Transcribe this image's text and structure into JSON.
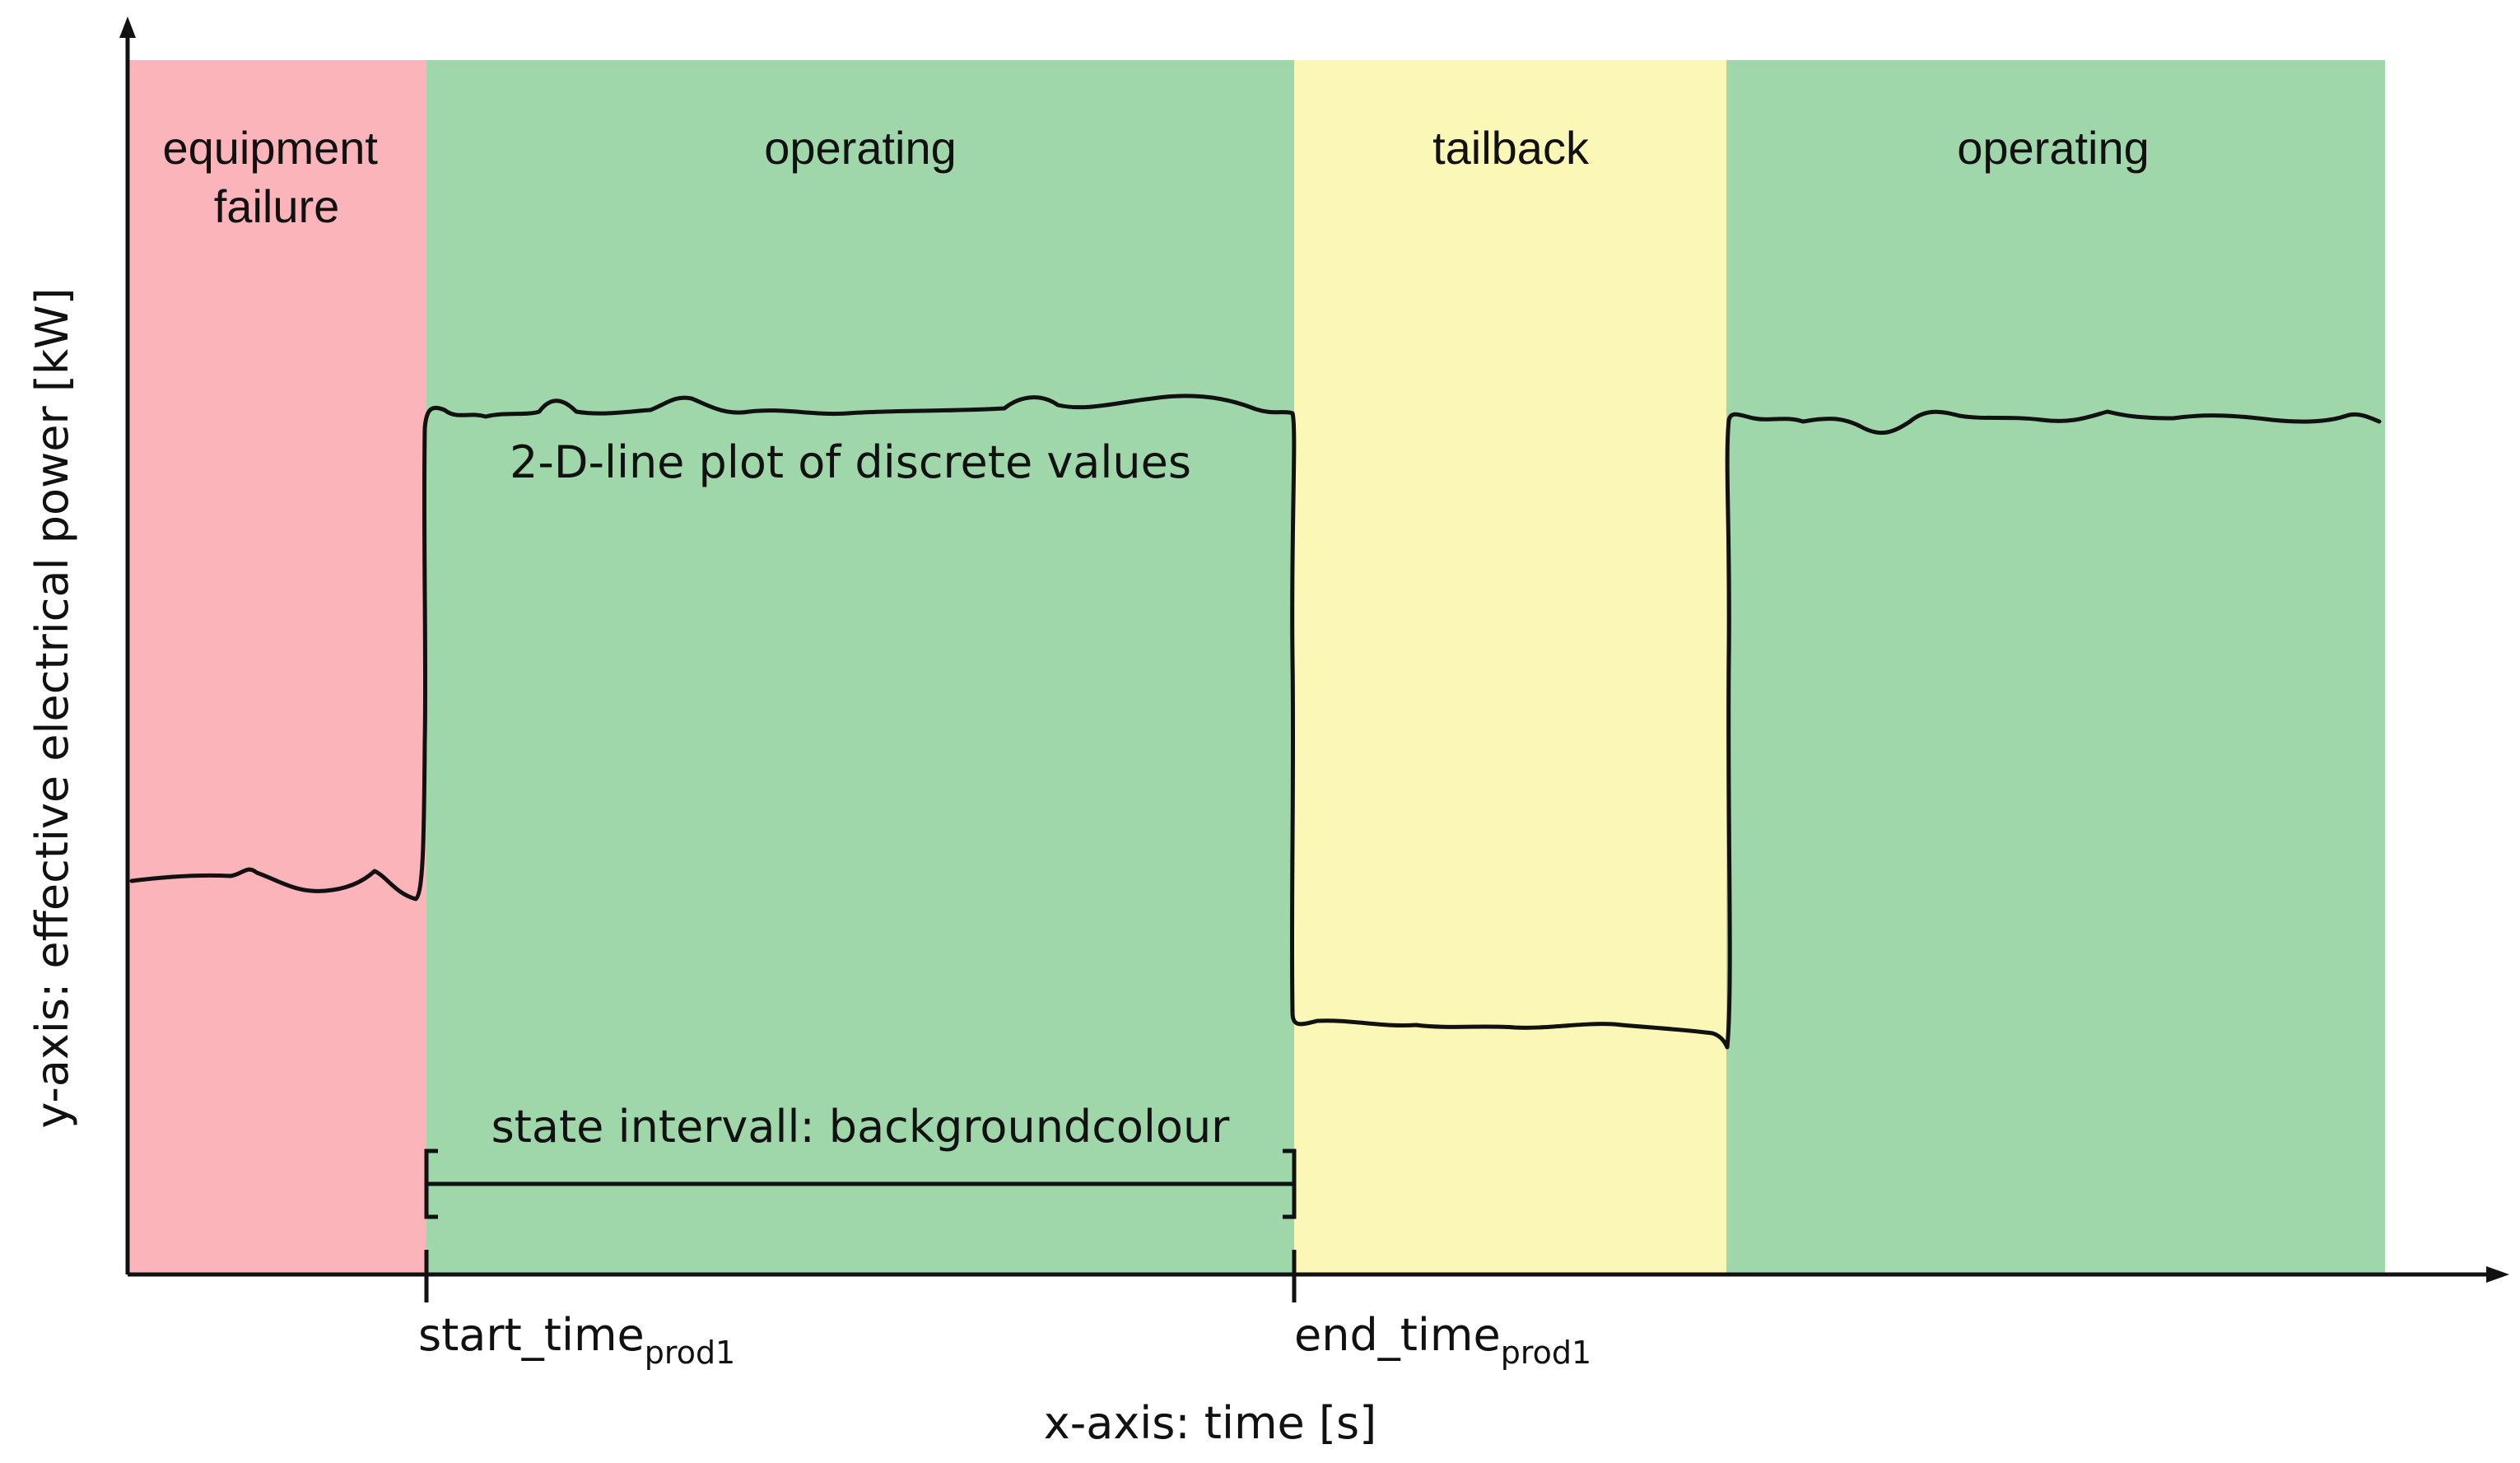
{
  "diagram": {
    "colors": {
      "equipment_failure": "#fbb5ba",
      "operating": "#9fd7ab",
      "tailback": "#fbf8b7",
      "line": "#111111"
    },
    "states": [
      {
        "label_lines": [
          "equipment",
          "failure"
        ],
        "color_key": "equipment_failure"
      },
      {
        "label_lines": [
          "operating"
        ],
        "color_key": "operating"
      },
      {
        "label_lines": [
          "tailback"
        ],
        "color_key": "tailback"
      },
      {
        "label_lines": [
          "operating"
        ],
        "color_key": "operating"
      }
    ],
    "line_plot_label": "2-D-line plot of discrete values",
    "interval_label": "state intervall: backgroundcolour",
    "start_marker": {
      "text": "start_time",
      "sub": "prod1"
    },
    "end_marker": {
      "text": "end_time",
      "sub": "prod1"
    },
    "x_axis_title": "x-axis: time [s]",
    "y_axis_title": "y-axis: effective electrical power [kW]"
  }
}
